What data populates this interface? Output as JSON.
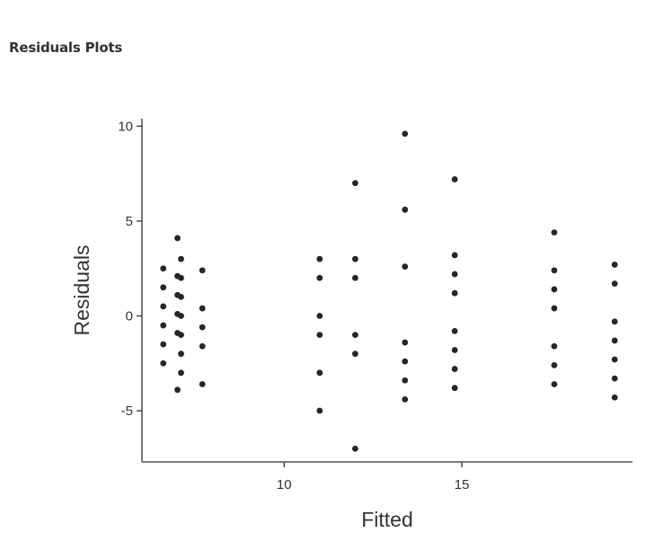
{
  "header": {
    "title": "Residuals Plots"
  },
  "chart_data": {
    "type": "scatter",
    "xlabel": "Fitted",
    "ylabel": "Residuals",
    "xlim": [
      6.0,
      19.8
    ],
    "ylim": [
      -7.7,
      10.4
    ],
    "xticks": [
      10,
      15
    ],
    "yticks": [
      -5,
      0,
      5,
      10
    ],
    "xtick_labels": [
      "10",
      "15"
    ],
    "ytick_labels": [
      "-5",
      "0",
      "5",
      "10"
    ],
    "grid": false,
    "points": [
      {
        "x": 6.6,
        "y": 2.5
      },
      {
        "x": 6.6,
        "y": 1.5
      },
      {
        "x": 6.6,
        "y": 0.5
      },
      {
        "x": 6.6,
        "y": -0.5
      },
      {
        "x": 6.6,
        "y": -1.5
      },
      {
        "x": 6.6,
        "y": -2.5
      },
      {
        "x": 7.0,
        "y": 4.1
      },
      {
        "x": 7.0,
        "y": 2.1
      },
      {
        "x": 7.0,
        "y": 1.1
      },
      {
        "x": 7.0,
        "y": 0.1
      },
      {
        "x": 7.0,
        "y": -0.9
      },
      {
        "x": 7.0,
        "y": -3.9
      },
      {
        "x": 7.1,
        "y": 3.0
      },
      {
        "x": 7.1,
        "y": 2.0
      },
      {
        "x": 7.1,
        "y": 1.0
      },
      {
        "x": 7.1,
        "y": 0.0
      },
      {
        "x": 7.1,
        "y": -1.0
      },
      {
        "x": 7.1,
        "y": -2.0
      },
      {
        "x": 7.1,
        "y": -3.0
      },
      {
        "x": 7.7,
        "y": 2.4
      },
      {
        "x": 7.7,
        "y": 0.4
      },
      {
        "x": 7.7,
        "y": -0.6
      },
      {
        "x": 7.7,
        "y": -1.6
      },
      {
        "x": 7.7,
        "y": -3.6
      },
      {
        "x": 11.0,
        "y": 3.0
      },
      {
        "x": 11.0,
        "y": 2.0
      },
      {
        "x": 11.0,
        "y": 0.0
      },
      {
        "x": 11.0,
        "y": -1.0
      },
      {
        "x": 11.0,
        "y": -3.0
      },
      {
        "x": 11.0,
        "y": -5.0
      },
      {
        "x": 12.0,
        "y": 7.0
      },
      {
        "x": 12.0,
        "y": 3.0
      },
      {
        "x": 12.0,
        "y": 2.0
      },
      {
        "x": 12.0,
        "y": -1.0
      },
      {
        "x": 12.0,
        "y": -2.0
      },
      {
        "x": 12.0,
        "y": -7.0
      },
      {
        "x": 13.4,
        "y": 9.6
      },
      {
        "x": 13.4,
        "y": 5.6
      },
      {
        "x": 13.4,
        "y": 2.6
      },
      {
        "x": 13.4,
        "y": -1.4
      },
      {
        "x": 13.4,
        "y": -2.4
      },
      {
        "x": 13.4,
        "y": -3.4
      },
      {
        "x": 13.4,
        "y": -4.4
      },
      {
        "x": 14.8,
        "y": 7.2
      },
      {
        "x": 14.8,
        "y": 3.2
      },
      {
        "x": 14.8,
        "y": 2.2
      },
      {
        "x": 14.8,
        "y": 1.2
      },
      {
        "x": 14.8,
        "y": -0.8
      },
      {
        "x": 14.8,
        "y": -1.8
      },
      {
        "x": 14.8,
        "y": -2.8
      },
      {
        "x": 14.8,
        "y": -3.8
      },
      {
        "x": 17.6,
        "y": 4.4
      },
      {
        "x": 17.6,
        "y": 2.4
      },
      {
        "x": 17.6,
        "y": 1.4
      },
      {
        "x": 17.6,
        "y": 0.4
      },
      {
        "x": 17.6,
        "y": -1.6
      },
      {
        "x": 17.6,
        "y": -2.6
      },
      {
        "x": 17.6,
        "y": -3.6
      },
      {
        "x": 19.3,
        "y": 2.7
      },
      {
        "x": 19.3,
        "y": 1.7
      },
      {
        "x": 19.3,
        "y": -0.3
      },
      {
        "x": 19.3,
        "y": -1.3
      },
      {
        "x": 19.3,
        "y": -2.3
      },
      {
        "x": 19.3,
        "y": -3.3
      },
      {
        "x": 19.3,
        "y": -4.3
      }
    ],
    "colors": {
      "point": "#262626",
      "axis": "#333333",
      "text": "#333333"
    }
  }
}
